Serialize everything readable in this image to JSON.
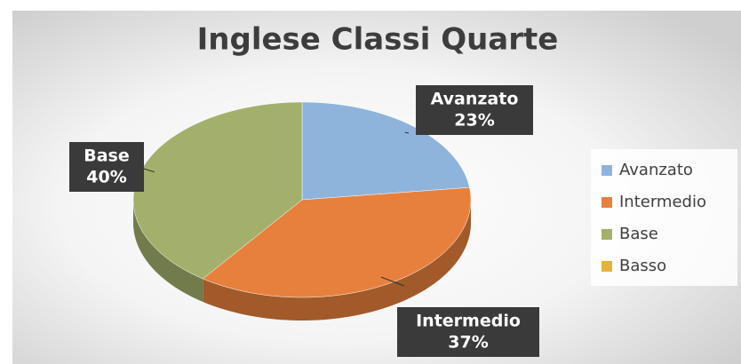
{
  "chart_data": {
    "type": "pie",
    "title": "Inglese Classi Quarte",
    "categories": [
      "Avanzato",
      "Intermedio",
      "Base",
      "Basso"
    ],
    "values": [
      23,
      37,
      40,
      0
    ],
    "value_labels": [
      "23%",
      "37%",
      "40%",
      null
    ],
    "colors": [
      "#8fb4dc",
      "#e8803d",
      "#a3b06c",
      "#e3b236"
    ],
    "legend": "right"
  }
}
